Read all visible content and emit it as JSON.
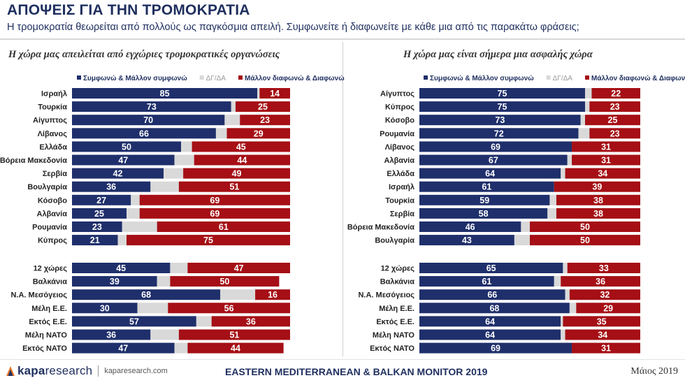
{
  "header": {
    "title": "ΑΠΟΨΕΙΣ ΓΙΑ ΤΗΝ ΤΡΟΜΟΚΡΑΤΙΑ",
    "subtitle": "Η τρομοκρατία θεωρείται από πολλούς ως παγκόσμια απειλή. Συμφωνείτε ή διαφωνείτε με κάθε μια από τις παρακάτω φράσεις;"
  },
  "legend": {
    "agree": "Συμφωνώ & Μάλλον συμφωνώ",
    "dk": "ΔΓ/ΔΑ",
    "disagree": "Μάλλον διαφωνώ & Διαφωνώ"
  },
  "colors": {
    "agree": "#1f2f6b",
    "dk": "#d9d9d9",
    "disagree": "#a50f15"
  },
  "chart_data": [
    {
      "type": "bar",
      "stacked": true,
      "orientation": "horizontal",
      "title": "Η χώρα μας απειλείται από εγχώριες τρομοκρατικές οργανώσεις",
      "xlim": [
        0,
        100
      ],
      "categories": [
        "Ισραήλ",
        "Τουρκία",
        "Αίγυπτος",
        "Λίβανος",
        "Ελλάδα",
        "Βόρεια Μακεδονία",
        "Σερβία",
        "Βουλγαρία",
        "Κόσοβο",
        "Αλβανία",
        "Ρουμανία",
        "Κύπρος",
        "12 χώρες",
        "Βαλκάνια",
        "Ν.Α. Μεσόγειος",
        "Μέλη Ε.Ε.",
        "Εκτός Ε.Ε.",
        "Μέλη ΝΑΤΟ",
        "Εκτός ΝΑΤΟ"
      ],
      "series": [
        {
          "name": "Συμφωνώ & Μάλλον συμφωνώ",
          "values": [
            85,
            73,
            70,
            66,
            50,
            47,
            42,
            36,
            27,
            25,
            23,
            21,
            45,
            39,
            68,
            30,
            57,
            36,
            47
          ]
        },
        {
          "name": "ΔΓ/ΔΑ",
          "values": [
            1,
            2,
            7,
            5,
            5,
            9,
            9,
            13,
            4,
            6,
            16,
            4,
            8,
            6,
            16,
            14,
            7,
            13,
            6
          ]
        },
        {
          "name": "Μάλλον διαφωνώ & Διαφωνώ",
          "values": [
            14,
            25,
            23,
            29,
            45,
            44,
            49,
            51,
            69,
            69,
            61,
            75,
            47,
            50,
            16,
            56,
            36,
            51,
            44
          ]
        }
      ]
    },
    {
      "type": "bar",
      "stacked": true,
      "orientation": "horizontal",
      "title": "Η χώρα μας είναι σήμερα μια ασφαλής χώρα",
      "xlim": [
        0,
        100
      ],
      "categories": [
        "Αίγυπτος",
        "Κύπρος",
        "Κόσοβο",
        "Ρουμανία",
        "Λίβανος",
        "Αλβανία",
        "Ελλάδα",
        "Ισραήλ",
        "Τουρκία",
        "Σερβία",
        "Βόρεια Μακεδονία",
        "Βουλγαρία",
        "12 χώρες",
        "Βαλκάνια",
        "Ν.Α. Μεσόγειος",
        "Μέλη Ε.Ε.",
        "Εκτός Ε.Ε.",
        "Μέλη ΝΑΤΟ",
        "Εκτός ΝΑΤΟ"
      ],
      "series": [
        {
          "name": "Συμφωνώ & Μάλλον συμφωνώ",
          "values": [
            75,
            75,
            73,
            72,
            69,
            67,
            64,
            61,
            59,
            58,
            46,
            43,
            65,
            61,
            66,
            68,
            64,
            64,
            69
          ]
        },
        {
          "name": "ΔΓ/ΔΑ",
          "values": [
            3,
            2,
            2,
            5,
            0,
            2,
            2,
            0,
            3,
            4,
            4,
            7,
            2,
            3,
            2,
            3,
            1,
            2,
            0
          ]
        },
        {
          "name": "Μάλλον διαφωνώ & Διαφωνώ",
          "values": [
            22,
            23,
            25,
            23,
            31,
            31,
            34,
            39,
            38,
            38,
            50,
            50,
            33,
            36,
            32,
            29,
            35,
            34,
            31
          ]
        }
      ]
    }
  ],
  "footer": {
    "logo_bold": "kapa",
    "logo_light": "research",
    "url": "kaparesearch.com",
    "center": "EASTERN MEDITERRANEAN & BALKAN MONITOR 2019",
    "date": "Μάιος 2019"
  }
}
